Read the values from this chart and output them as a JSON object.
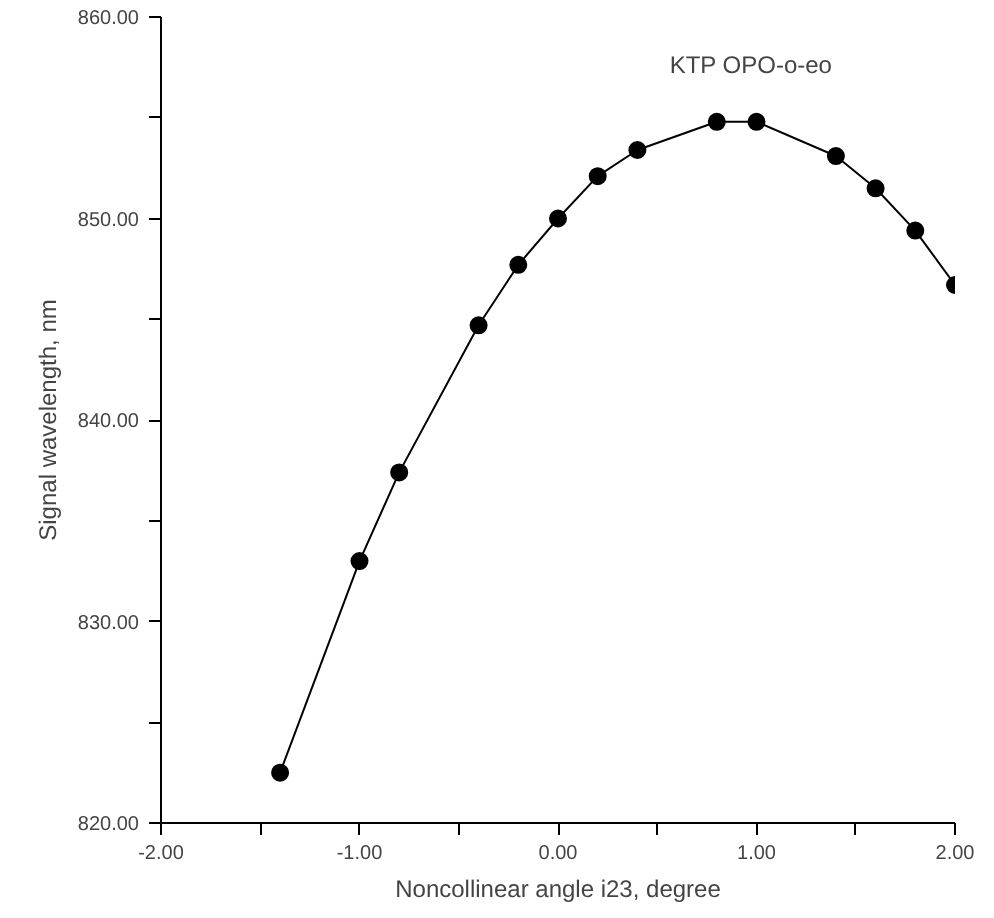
{
  "chart_data": {
    "type": "line",
    "xlabel": "Noncollinear angle i23, degree",
    "ylabel": "Signal wavelength, nm",
    "annotations": [
      "KTP OPO-o-eo"
    ],
    "x": [
      -1.4,
      -1.0,
      -0.8,
      -0.4,
      -0.2,
      0.0,
      0.2,
      0.4,
      0.8,
      1.0,
      1.4,
      1.6,
      1.8,
      2.0
    ],
    "series": [
      {
        "color": "#000000",
        "values": [
          822.5,
          833.0,
          837.4,
          844.7,
          847.7,
          850.0,
          852.1,
          853.4,
          854.8,
          854.8,
          853.1,
          851.5,
          849.4,
          846.7
        ]
      }
    ],
    "marker": "circle",
    "line_style": "solid",
    "grid": false,
    "xlim": [
      -2,
      2
    ],
    "ylim": [
      820,
      860
    ],
    "xticks": [
      {
        "value": -2,
        "label": "-2.00"
      },
      {
        "value": -1.5,
        "label": null
      },
      {
        "value": -1,
        "label": "-1.00"
      },
      {
        "value": -0.5,
        "label": null
      },
      {
        "value": 0,
        "label": "0.00"
      },
      {
        "value": 0.5,
        "label": null
      },
      {
        "value": 1,
        "label": "1.00"
      },
      {
        "value": 1.5,
        "label": null
      },
      {
        "value": 2,
        "label": "2.00"
      }
    ],
    "yticks": [
      {
        "value": 820,
        "label": "820.00"
      },
      {
        "value": 825,
        "label": null
      },
      {
        "value": 830,
        "label": "830.00"
      },
      {
        "value": 835,
        "label": null
      },
      {
        "value": 840,
        "label": "840.00"
      },
      {
        "value": 845,
        "label": null
      },
      {
        "value": 850,
        "label": "850.00"
      },
      {
        "value": 855,
        "label": null
      },
      {
        "value": 860,
        "label": "860.00"
      }
    ]
  }
}
